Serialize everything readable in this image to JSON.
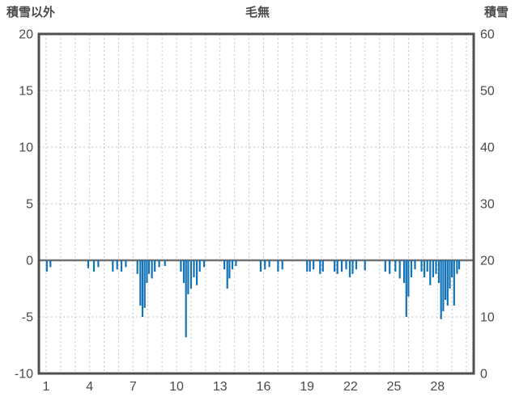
{
  "chart_data": {
    "type": "bar",
    "title": "毛無",
    "left_axis_title": "積雪以外",
    "right_axis_title": "積雪",
    "left_axis": {
      "min": -10,
      "max": 20,
      "ticks": [
        20,
        15,
        10,
        5,
        0,
        -5,
        -10
      ]
    },
    "right_axis": {
      "min": 0,
      "max": 60,
      "ticks": [
        60,
        50,
        40,
        30,
        20,
        10,
        0
      ]
    },
    "x_axis": {
      "min": 0.5,
      "max": 30.5,
      "tick_days": [
        1,
        4,
        7,
        10,
        13,
        16,
        19,
        22,
        25,
        28
      ],
      "grid_every_day": true
    },
    "legend_position": "none",
    "grid": "dashed",
    "bar_color": "#1273b8",
    "border_color": "#4f4f4f",
    "zero_line_color": "#737373",
    "grid_color": "#c4c4c4",
    "text_color": "#4a4a4a",
    "bars_day_value": [
      [
        1.05,
        -1.0
      ],
      [
        1.3,
        -0.6
      ],
      [
        3.9,
        -0.7
      ],
      [
        4.3,
        -1.0
      ],
      [
        4.6,
        -0.6
      ],
      [
        5.6,
        -1.0
      ],
      [
        5.9,
        -0.8
      ],
      [
        6.2,
        -1.0
      ],
      [
        6.5,
        -0.6
      ],
      [
        7.3,
        -1.2
      ],
      [
        7.5,
        -4.0
      ],
      [
        7.65,
        -5.0
      ],
      [
        7.8,
        -4.2
      ],
      [
        7.95,
        -2.0
      ],
      [
        8.1,
        -1.2
      ],
      [
        8.3,
        -1.6
      ],
      [
        8.5,
        -1.0
      ],
      [
        8.8,
        -0.6
      ],
      [
        9.2,
        -0.5
      ],
      [
        10.3,
        -1.0
      ],
      [
        10.5,
        -2.0
      ],
      [
        10.65,
        -6.8
      ],
      [
        10.8,
        -3.0
      ],
      [
        11.0,
        -2.5
      ],
      [
        11.2,
        -1.5
      ],
      [
        11.4,
        -2.2
      ],
      [
        11.6,
        -1.0
      ],
      [
        11.9,
        -0.6
      ],
      [
        13.3,
        -0.8
      ],
      [
        13.5,
        -2.5
      ],
      [
        13.65,
        -1.6
      ],
      [
        13.85,
        -0.8
      ],
      [
        14.1,
        -0.5
      ],
      [
        15.8,
        -1.0
      ],
      [
        16.1,
        -0.8
      ],
      [
        16.4,
        -0.6
      ],
      [
        17.0,
        -1.0
      ],
      [
        17.3,
        -0.8
      ],
      [
        19.0,
        -1.0
      ],
      [
        19.2,
        -1.0
      ],
      [
        19.45,
        -0.8
      ],
      [
        19.9,
        -1.2
      ],
      [
        20.1,
        -1.0
      ],
      [
        20.9,
        -1.0
      ],
      [
        21.1,
        -1.2
      ],
      [
        21.4,
        -1.0
      ],
      [
        21.7,
        -0.8
      ],
      [
        21.95,
        -1.5
      ],
      [
        22.15,
        -1.2
      ],
      [
        22.4,
        -0.8
      ],
      [
        23.0,
        -0.9
      ],
      [
        24.4,
        -1.0
      ],
      [
        24.7,
        -1.2
      ],
      [
        25.1,
        -1.0
      ],
      [
        25.4,
        -1.6
      ],
      [
        25.7,
        -2.0
      ],
      [
        25.85,
        -5.0
      ],
      [
        26.0,
        -3.2
      ],
      [
        26.2,
        -1.5
      ],
      [
        26.45,
        -0.8
      ],
      [
        26.9,
        -1.0
      ],
      [
        27.1,
        -1.5
      ],
      [
        27.3,
        -1.0
      ],
      [
        27.5,
        -2.2
      ],
      [
        27.7,
        -1.5
      ],
      [
        27.9,
        -1.2
      ],
      [
        28.1,
        -2.0
      ],
      [
        28.25,
        -5.2
      ],
      [
        28.4,
        -4.5
      ],
      [
        28.55,
        -3.5
      ],
      [
        28.7,
        -4.0
      ],
      [
        28.85,
        -2.5
      ],
      [
        29.0,
        -1.5
      ],
      [
        29.15,
        -4.0
      ],
      [
        29.35,
        -1.2
      ],
      [
        29.5,
        -0.8
      ]
    ]
  }
}
